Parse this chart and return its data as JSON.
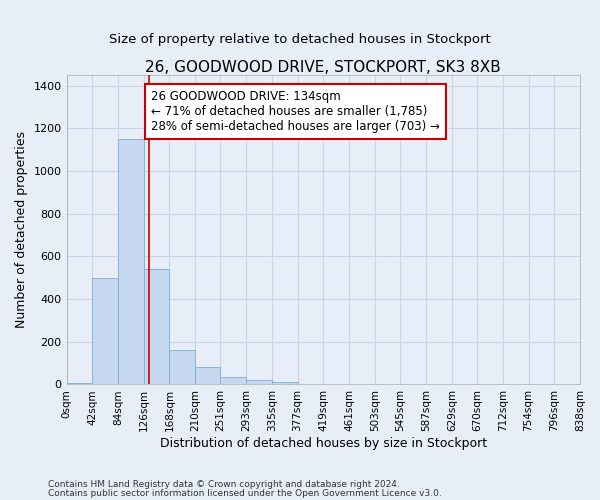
{
  "title": "26, GOODWOOD DRIVE, STOCKPORT, SK3 8XB",
  "subtitle": "Size of property relative to detached houses in Stockport",
  "xlabel": "Distribution of detached houses by size in Stockport",
  "ylabel": "Number of detached properties",
  "footer_line1": "Contains HM Land Registry data © Crown copyright and database right 2024.",
  "footer_line2": "Contains public sector information licensed under the Open Government Licence v3.0.",
  "bar_edges": [
    0,
    42,
    84,
    126,
    168,
    210,
    251,
    293,
    335,
    377,
    419,
    461,
    503,
    545,
    587,
    629,
    670,
    712,
    754,
    796,
    838
  ],
  "bar_heights": [
    8,
    500,
    1150,
    540,
    160,
    83,
    35,
    22,
    13,
    0,
    0,
    0,
    0,
    0,
    0,
    0,
    0,
    0,
    0,
    0
  ],
  "bar_color": "#c5d8f0",
  "bar_edgecolor": "#7bafd4",
  "grid_color": "#c8d4e8",
  "background_color": "#e8eef8",
  "vline_x": 134,
  "vline_color": "#cc0000",
  "annotation_text": "26 GOODWOOD DRIVE: 134sqm\n← 71% of detached houses are smaller (1,785)\n28% of semi-detached houses are larger (703) →",
  "annotation_box_color": "#ffffff",
  "annotation_box_edgecolor": "#cc0000",
  "ylim": [
    0,
    1450
  ],
  "yticks": [
    0,
    200,
    400,
    600,
    800,
    1000,
    1200,
    1400
  ],
  "tick_labels": [
    "0sqm",
    "42sqm",
    "84sqm",
    "126sqm",
    "168sqm",
    "210sqm",
    "251sqm",
    "293sqm",
    "335sqm",
    "377sqm",
    "419sqm",
    "461sqm",
    "503sqm",
    "545sqm",
    "587sqm",
    "629sqm",
    "670sqm",
    "712sqm",
    "754sqm",
    "796sqm",
    "838sqm"
  ],
  "title_fontsize": 11,
  "subtitle_fontsize": 9.5,
  "axis_label_fontsize": 9,
  "tick_fontsize": 7.5,
  "annotation_fontsize": 8.5,
  "footer_fontsize": 6.5
}
